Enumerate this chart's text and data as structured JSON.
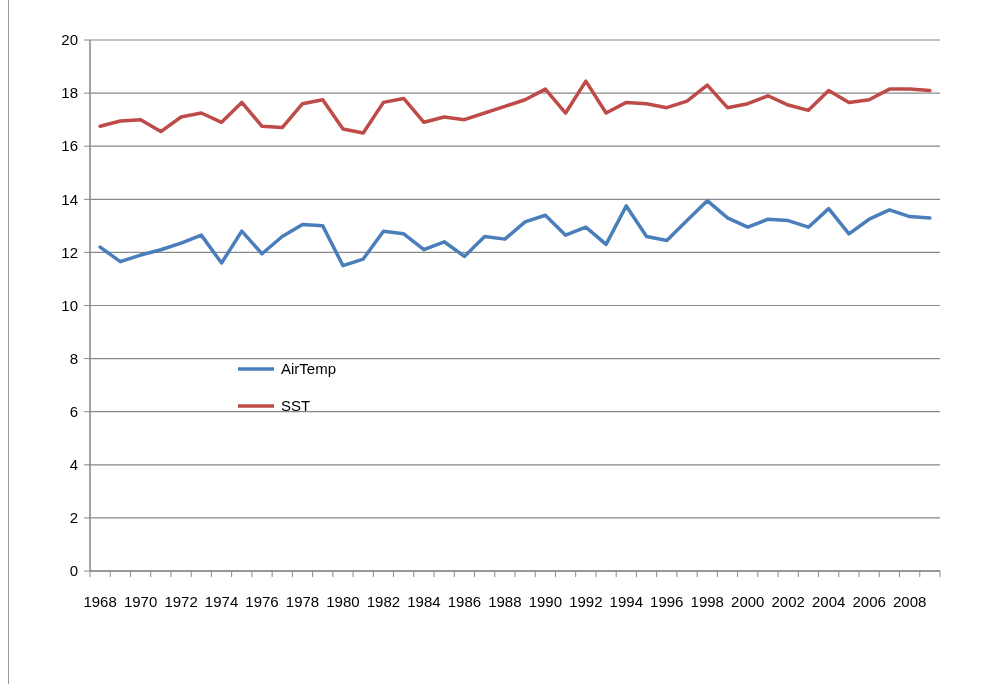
{
  "chart_data": {
    "type": "line",
    "categories": [
      "1968",
      null,
      "1970",
      null,
      "1972",
      null,
      "1974",
      null,
      "1976",
      null,
      "1978",
      null,
      "1980",
      null,
      "1982",
      null,
      "1984",
      null,
      "1986",
      null,
      "1988",
      null,
      "1990",
      null,
      "1992",
      null,
      "1994",
      null,
      "1996",
      null,
      "1998",
      null,
      "2000",
      null,
      "2002",
      null,
      "2004",
      null,
      "2006",
      null,
      "2008",
      null
    ],
    "series": [
      {
        "name": "AirTemp",
        "color": "#4a7ebb",
        "values": [
          12.2,
          11.65,
          11.9,
          12.1,
          12.35,
          12.65,
          11.6,
          12.8,
          11.95,
          12.6,
          13.05,
          13.0,
          11.5,
          11.75,
          12.8,
          12.7,
          12.1,
          12.4,
          11.85,
          12.6,
          12.5,
          13.15,
          13.4,
          12.65,
          12.95,
          12.3,
          13.75,
          12.6,
          12.45,
          13.2,
          13.95,
          13.3,
          12.95,
          13.25,
          13.2,
          12.95,
          13.65,
          12.7,
          13.25,
          13.6,
          13.35,
          13.3
        ]
      },
      {
        "name": "SST",
        "color": "#be4b48",
        "values": [
          16.75,
          16.95,
          17.0,
          16.55,
          17.1,
          17.25,
          16.9,
          17.65,
          16.75,
          16.7,
          17.6,
          17.75,
          16.65,
          16.5,
          17.65,
          17.8,
          16.9,
          17.1,
          17.0,
          17.25,
          17.5,
          17.75,
          18.15,
          17.25,
          18.45,
          17.25,
          17.65,
          17.6,
          17.45,
          17.7,
          18.3,
          17.45,
          17.6,
          17.9,
          17.55,
          17.35,
          18.1,
          17.65,
          17.75,
          18.15,
          18.15,
          18.1
        ]
      }
    ],
    "ylim": [
      0,
      20
    ],
    "yticks": [
      0,
      2,
      4,
      6,
      8,
      10,
      12,
      14,
      16,
      18,
      20
    ],
    "grid": "y",
    "legend": "left",
    "marker": "none",
    "line_style": "solid"
  }
}
